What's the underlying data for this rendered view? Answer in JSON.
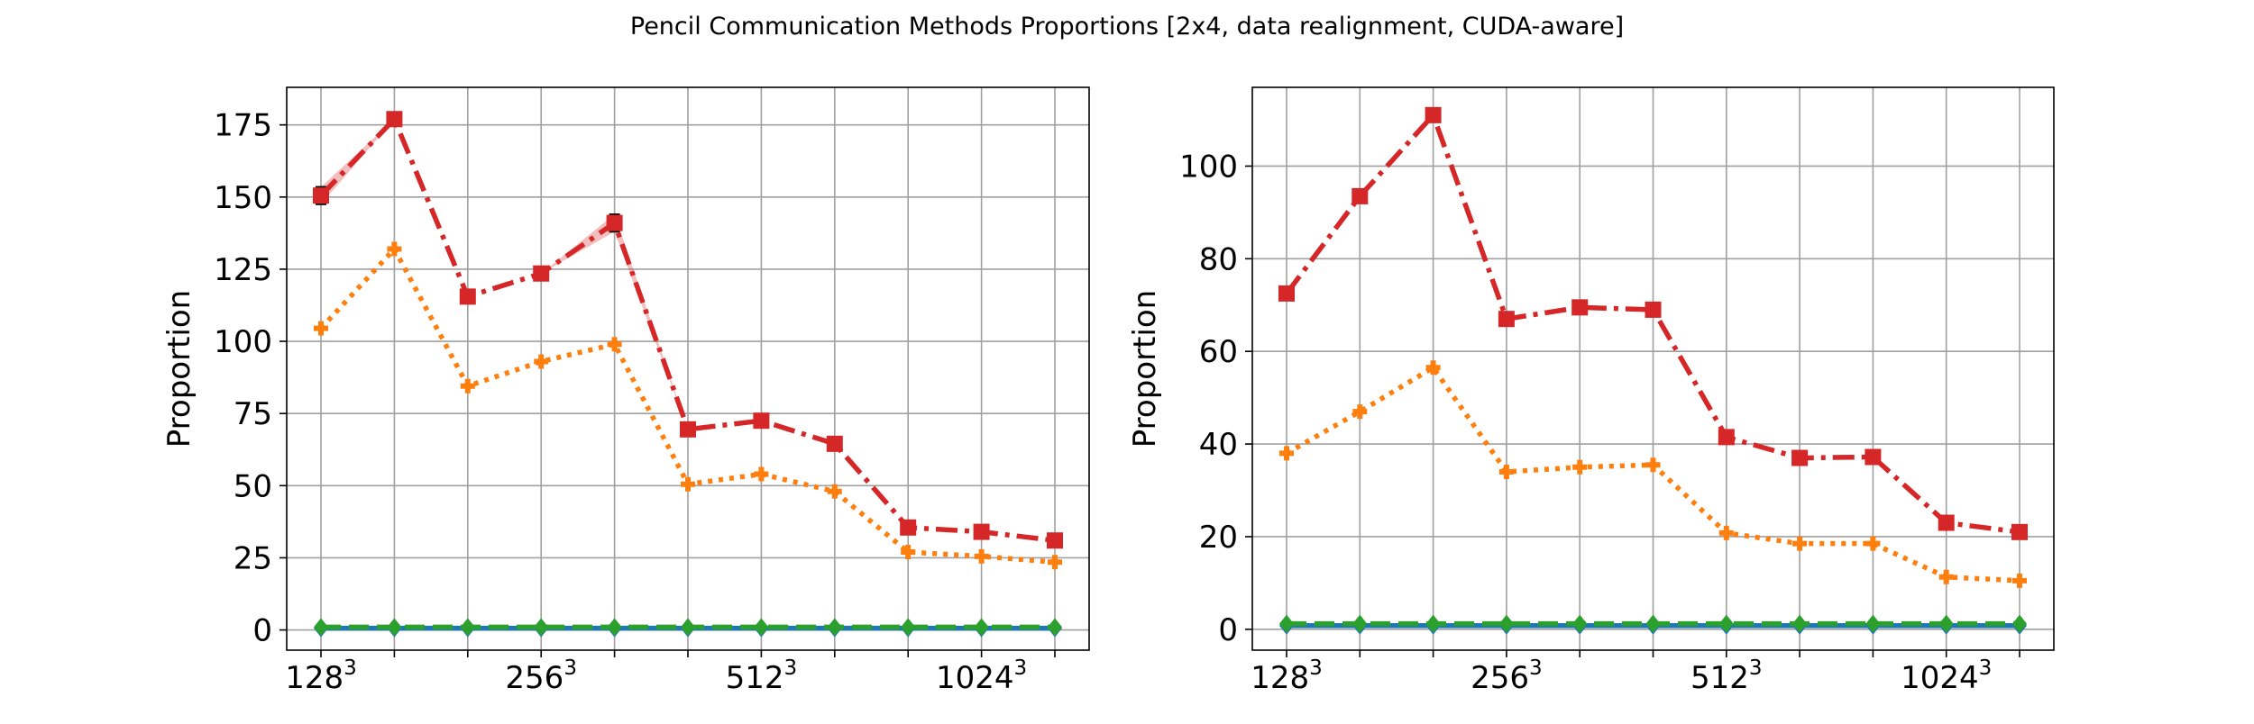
{
  "figure": {
    "title": "Pencil Communication Methods Proportions [2x4, data realignment, CUDA-aware]"
  },
  "chart_data": [
    {
      "type": "line",
      "ylabel": "Proportion",
      "xlabel": "",
      "x_tick_labels": [
        {
          "base": "128",
          "exp": "3",
          "index": 0
        },
        {
          "base": "256",
          "exp": "3",
          "index": 3
        },
        {
          "base": "512",
          "exp": "3",
          "index": 6
        },
        {
          "base": "1024",
          "exp": "3",
          "index": 9
        }
      ],
      "num_points": 11,
      "ylim": [
        -7,
        188
      ],
      "yticks": [
        0,
        25,
        50,
        75,
        100,
        125,
        150,
        175
      ],
      "grid": true,
      "series": [
        {
          "color": "#d62728",
          "linestyle": "dashdot",
          "marker": "square",
          "values": [
            150.5,
            177,
            115.5,
            123.5,
            141,
            69.5,
            72.5,
            64.5,
            35.5,
            34,
            31
          ],
          "errors": [
            3,
            0,
            0,
            0,
            3,
            0,
            0,
            0,
            0,
            0,
            0
          ]
        },
        {
          "color": "#ff7f0e",
          "linestyle": "dotted",
          "marker": "plus",
          "values": [
            104.5,
            132,
            84.5,
            93,
            99,
            50.5,
            54,
            48,
            27,
            25.5,
            23.5
          ]
        },
        {
          "color": "#2ca02c",
          "linestyle": "dashed",
          "marker": "diamond",
          "values": [
            1,
            1,
            1,
            1,
            1,
            1,
            1,
            1,
            1,
            1,
            1
          ]
        },
        {
          "color": "#1f77b4",
          "linestyle": "solid",
          "marker": "diamond",
          "values": [
            0.6,
            0.6,
            0.6,
            0.6,
            0.6,
            0.6,
            0.6,
            0.6,
            0.6,
            0.6,
            0.6
          ]
        }
      ]
    },
    {
      "type": "line",
      "ylabel": "Proportion",
      "xlabel": "",
      "x_tick_labels": [
        {
          "base": "128",
          "exp": "3",
          "index": 0
        },
        {
          "base": "256",
          "exp": "3",
          "index": 3
        },
        {
          "base": "512",
          "exp": "3",
          "index": 6
        },
        {
          "base": "1024",
          "exp": "3",
          "index": 9
        }
      ],
      "num_points": 11,
      "ylim": [
        -4.5,
        117
      ],
      "yticks": [
        0,
        20,
        40,
        60,
        80,
        100
      ],
      "grid": true,
      "series": [
        {
          "color": "#d62728",
          "linestyle": "dashdot",
          "marker": "square",
          "values": [
            72.5,
            93.5,
            111,
            67,
            69.5,
            69,
            41.5,
            37,
            37.2,
            23,
            21
          ]
        },
        {
          "color": "#ff7f0e",
          "linestyle": "dotted",
          "marker": "plus",
          "values": [
            38,
            47,
            56.5,
            34,
            35,
            35.5,
            20.8,
            18.5,
            18.5,
            11.3,
            10.5
          ]
        },
        {
          "color": "#2ca02c",
          "linestyle": "dashed",
          "marker": "diamond",
          "values": [
            1.2,
            1.2,
            1.2,
            1.2,
            1.2,
            1.2,
            1.2,
            1.2,
            1.2,
            1.2,
            1.2
          ]
        },
        {
          "color": "#1f77b4",
          "linestyle": "solid",
          "marker": "diamond",
          "values": [
            0.8,
            0.8,
            0.8,
            0.8,
            0.8,
            0.8,
            0.8,
            0.8,
            0.8,
            0.8,
            0.8
          ]
        }
      ]
    }
  ]
}
